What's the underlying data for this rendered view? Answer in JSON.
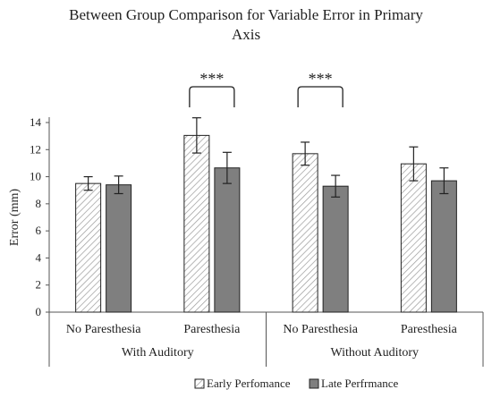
{
  "chart_data": {
    "type": "bar",
    "title": "Between Group Comparison for Variable Error in Primary Axis",
    "title_lines": [
      "Between Group Comparison for Variable Error in Primary",
      "Axis"
    ],
    "ylabel": "Error (mm)",
    "ylim": [
      0,
      14
    ],
    "yticks": [
      0,
      2,
      4,
      6,
      8,
      10,
      12,
      14
    ],
    "grid": false,
    "legend_position": "bottom",
    "groups": [
      {
        "label": "With Auditory",
        "categories": [
          "No Paresthesia",
          "Paresthesia"
        ]
      },
      {
        "label": "Without Auditory",
        "categories": [
          "No Paresthesia",
          "Paresthesia"
        ]
      }
    ],
    "categories": [
      "No Paresthesia",
      "Paresthesia",
      "No Paresthesia",
      "Paresthesia"
    ],
    "series": [
      {
        "name": "Early Perfomance",
        "pattern": "hatched",
        "color": "#ffffff",
        "values": [
          9.5,
          13.05,
          11.7,
          10.95
        ],
        "errors": [
          0.5,
          1.3,
          0.85,
          1.25
        ]
      },
      {
        "name": "Late Perfrmance",
        "pattern": "solid",
        "color": "#7f7f7f",
        "values": [
          9.4,
          10.65,
          9.3,
          9.7
        ],
        "errors": [
          0.65,
          1.15,
          0.8,
          0.95
        ]
      }
    ],
    "significance": [
      {
        "category_index": 1,
        "label": "***"
      },
      {
        "category_index": 2,
        "label": "***"
      }
    ]
  }
}
